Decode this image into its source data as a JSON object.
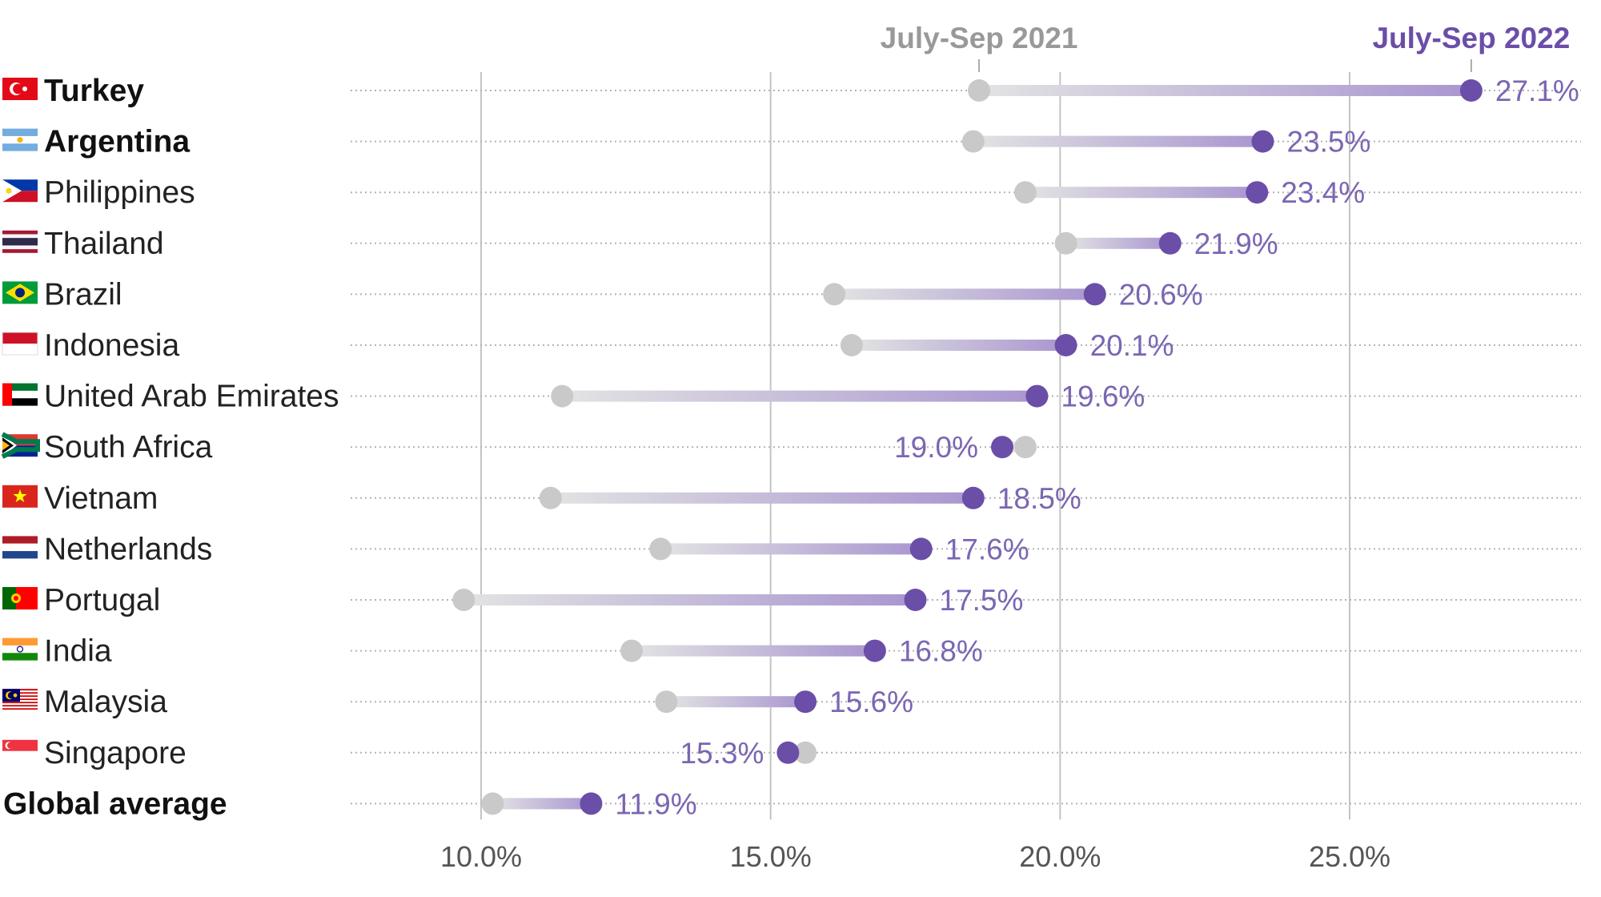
{
  "chart_data": {
    "type": "dumbbell",
    "series": [
      {
        "name": "July-Sep 2021",
        "color": "#c9c9c9"
      },
      {
        "name": "July-Sep 2022",
        "color": "#6a4ea8"
      }
    ],
    "x_ticks": [
      "10.0%",
      "15.0%",
      "20.0%",
      "25.0%"
    ],
    "x_tick_values": [
      10,
      15,
      20,
      25
    ],
    "xlim": [
      7.7,
      29.0
    ],
    "grid": "vertical solid at ticks, horizontal dotted per row",
    "rows": [
      {
        "country": "Turkey",
        "flag": "turkey-flag",
        "bold": true,
        "v2021": 18.6,
        "v2022": 27.1,
        "label": "27.1%"
      },
      {
        "country": "Argentina",
        "flag": "argentina-flag",
        "bold": true,
        "v2021": 18.5,
        "v2022": 23.5,
        "label": "23.5%"
      },
      {
        "country": "Philippines",
        "flag": "philippines-flag",
        "bold": false,
        "v2021": 19.4,
        "v2022": 23.4,
        "label": "23.4%"
      },
      {
        "country": "Thailand",
        "flag": "thailand-flag",
        "bold": false,
        "v2021": 20.1,
        "v2022": 21.9,
        "label": "21.9%"
      },
      {
        "country": "Brazil",
        "flag": "brazil-flag",
        "bold": false,
        "v2021": 16.1,
        "v2022": 20.6,
        "label": "20.6%"
      },
      {
        "country": "Indonesia",
        "flag": "indonesia-flag",
        "bold": false,
        "v2021": 16.4,
        "v2022": 20.1,
        "label": "20.1%"
      },
      {
        "country": "United Arab Emirates",
        "flag": "uae-flag",
        "bold": false,
        "v2021": 11.4,
        "v2022": 19.6,
        "label": "19.6%"
      },
      {
        "country": "South Africa",
        "flag": "south-africa-flag",
        "bold": false,
        "v2021": 19.4,
        "v2022": 19.0,
        "label": "19.0%"
      },
      {
        "country": "Vietnam",
        "flag": "vietnam-flag",
        "bold": false,
        "v2021": 11.2,
        "v2022": 18.5,
        "label": "18.5%"
      },
      {
        "country": "Netherlands",
        "flag": "netherlands-flag",
        "bold": false,
        "v2021": 13.1,
        "v2022": 17.6,
        "label": "17.6%"
      },
      {
        "country": "Portugal",
        "flag": "portugal-flag",
        "bold": false,
        "v2021": 9.7,
        "v2022": 17.5,
        "label": "17.5%"
      },
      {
        "country": "India",
        "flag": "india-flag",
        "bold": false,
        "v2021": 12.6,
        "v2022": 16.8,
        "label": "16.8%"
      },
      {
        "country": "Malaysia",
        "flag": "malaysia-flag",
        "bold": false,
        "v2021": 13.2,
        "v2022": 15.6,
        "label": "15.6%"
      },
      {
        "country": "Singapore",
        "flag": "singapore-flag",
        "bold": false,
        "v2021": 15.6,
        "v2022": 15.3,
        "label": "15.3%"
      },
      {
        "country": "Global average",
        "flag": "",
        "bold": true,
        "v2021": 10.2,
        "v2022": 11.9,
        "label": "11.9%"
      }
    ]
  }
}
